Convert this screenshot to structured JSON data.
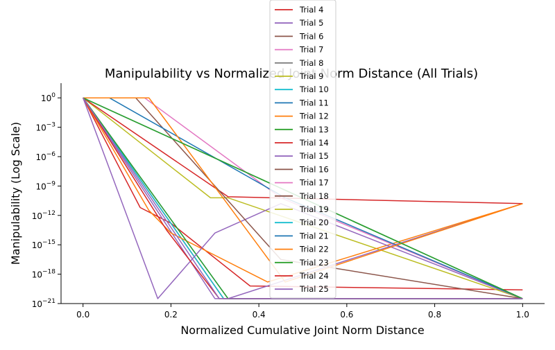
{
  "chart_data": {
    "type": "line",
    "title": "Manipulability vs Normalized Joint Norm Distance (All Trials)",
    "xlabel": "Normalized Cumulative Joint Norm Distance",
    "ylabel": "Manipulability (Log Scale)",
    "xscale": "linear",
    "yscale": "log",
    "xlim": [
      -0.05,
      1.05
    ],
    "ylim_exponent": [
      -21,
      1.5
    ],
    "x_ticks": [
      {
        "value": 0.0,
        "label": "0.0"
      },
      {
        "value": 0.2,
        "label": "0.2"
      },
      {
        "value": 0.4,
        "label": "0.4"
      },
      {
        "value": 0.6,
        "label": "0.6"
      },
      {
        "value": 0.8,
        "label": "0.8"
      },
      {
        "value": 1.0,
        "label": "1.0"
      }
    ],
    "y_ticks": [
      {
        "exp": 0,
        "base": "10",
        "sup": "0"
      },
      {
        "exp": -3,
        "base": "10",
        "sup": "−3"
      },
      {
        "exp": -6,
        "base": "10",
        "sup": "−6"
      },
      {
        "exp": -9,
        "base": "10",
        "sup": "−9"
      },
      {
        "exp": -12,
        "base": "10",
        "sup": "−12"
      },
      {
        "exp": -15,
        "base": "10",
        "sup": "−15"
      },
      {
        "exp": -18,
        "base": "10",
        "sup": "−18"
      },
      {
        "exp": -21,
        "base": "10",
        "sup": "−21"
      }
    ],
    "grid": false,
    "legend_position": "top-center",
    "series_note_y_unit": "log10(Manipulability)",
    "series": [
      {
        "name": "Trial 4",
        "color": "#d62728",
        "points": [
          [
            0,
            0
          ],
          [
            0.13,
            -11.2
          ],
          [
            0.2,
            -12.8
          ],
          [
            0.38,
            -19.2
          ],
          [
            1.0,
            -19.6
          ]
        ]
      },
      {
        "name": "Trial 5",
        "color": "#9467bd",
        "points": [
          [
            0,
            0
          ],
          [
            0.3,
            -20.5
          ],
          [
            0.33,
            -20.5
          ],
          [
            1.0,
            -10.8
          ]
        ]
      },
      {
        "name": "Trial 6",
        "color": "#8c564b",
        "points": [
          [
            0,
            0
          ],
          [
            0.32,
            -20.5
          ],
          [
            1.0,
            -20.5
          ]
        ]
      },
      {
        "name": "Trial 7",
        "color": "#e377c2",
        "points": [
          [
            0,
            0
          ],
          [
            0.32,
            -20.5
          ],
          [
            1.0,
            -20.5
          ]
        ]
      },
      {
        "name": "Trial 8",
        "color": "#7f7f7f",
        "points": [
          [
            0,
            0
          ],
          [
            0.32,
            -20.5
          ],
          [
            1.0,
            -20.5
          ]
        ]
      },
      {
        "name": "Trial 9",
        "color": "#bcbd22",
        "points": [
          [
            0,
            0
          ],
          [
            0.29,
            -10.2
          ],
          [
            0.33,
            -10.2
          ],
          [
            1.0,
            -20.5
          ]
        ]
      },
      {
        "name": "Trial 10",
        "color": "#17becf",
        "points": [
          [
            0,
            0
          ],
          [
            0.32,
            -20.5
          ],
          [
            1.0,
            -20.5
          ]
        ]
      },
      {
        "name": "Trial 11",
        "color": "#1f77b4",
        "points": [
          [
            0,
            0
          ],
          [
            0.33,
            -20.5
          ],
          [
            1.0,
            -20.5
          ]
        ]
      },
      {
        "name": "Trial 12",
        "color": "#ff7f0e",
        "points": [
          [
            0,
            0
          ],
          [
            0.15,
            -11.5
          ],
          [
            0.2,
            -13.8
          ],
          [
            0.42,
            -18.8
          ],
          [
            1.0,
            -10.8
          ]
        ]
      },
      {
        "name": "Trial 13",
        "color": "#2ca02c",
        "points": [
          [
            0,
            0
          ],
          [
            0.33,
            -20.5
          ],
          [
            1.0,
            -20.5
          ]
        ]
      },
      {
        "name": "Trial 14",
        "color": "#d62728",
        "points": [
          [
            0,
            0
          ],
          [
            0.33,
            -10.1
          ],
          [
            1.0,
            -10.8
          ]
        ]
      },
      {
        "name": "Trial 15",
        "color": "#9467bd",
        "points": [
          [
            0,
            0
          ],
          [
            0.17,
            -20.5
          ],
          [
            0.3,
            -13.8
          ],
          [
            0.45,
            -10.8
          ],
          [
            1.0,
            -20.5
          ]
        ]
      },
      {
        "name": "Trial 16",
        "color": "#8c564b",
        "points": [
          [
            0,
            0
          ],
          [
            0.12,
            0
          ],
          [
            0.45,
            -16.5
          ],
          [
            1.0,
            -20.5
          ]
        ]
      },
      {
        "name": "Trial 17",
        "color": "#e377c2",
        "points": [
          [
            0,
            0
          ],
          [
            0.14,
            0
          ],
          [
            0.45,
            -10.2
          ],
          [
            1.0,
            -20.5
          ]
        ]
      },
      {
        "name": "Trial 18",
        "color": "#8c564b",
        "points": [
          [
            0,
            0
          ],
          [
            1.0,
            -20.5
          ]
        ]
      },
      {
        "name": "Trial 19",
        "color": "#bcbd22",
        "points": [
          [
            0,
            0
          ],
          [
            1.0,
            -20.5
          ]
        ]
      },
      {
        "name": "Trial 20",
        "color": "#17becf",
        "points": [
          [
            0,
            0
          ],
          [
            1.0,
            -20.5
          ]
        ]
      },
      {
        "name": "Trial 21",
        "color": "#1f77b4",
        "points": [
          [
            0,
            0
          ],
          [
            0.06,
            0
          ],
          [
            0.46,
            -10.2
          ],
          [
            1.0,
            -20.5
          ]
        ]
      },
      {
        "name": "Trial 22",
        "color": "#ff7f0e",
        "points": [
          [
            0,
            0
          ],
          [
            0.15,
            0
          ],
          [
            0.46,
            -18.8
          ],
          [
            1.0,
            -10.8
          ]
        ]
      },
      {
        "name": "Trial 23",
        "color": "#2ca02c",
        "points": [
          [
            0,
            0
          ],
          [
            1.0,
            -20.5
          ]
        ]
      },
      {
        "name": "Trial 24",
        "color": "#d62728",
        "points": [
          [
            0,
            0
          ],
          [
            0.19,
            -13.5
          ],
          [
            0.31,
            -20.5
          ],
          [
            1.0,
            -20.5
          ]
        ]
      },
      {
        "name": "Trial 25",
        "color": "#9467bd",
        "points": [
          [
            0,
            0
          ],
          [
            0.31,
            -20.5
          ],
          [
            1.0,
            -20.5
          ]
        ]
      }
    ]
  }
}
